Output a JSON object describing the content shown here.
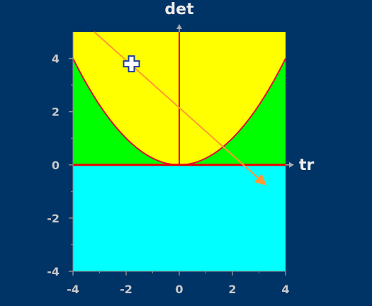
{
  "axes": {
    "x_label": "tr",
    "y_label": "det",
    "xlim": [
      -4,
      4
    ],
    "ylim": [
      -4,
      5
    ],
    "x_ticks": [
      "-4",
      "-2",
      "0",
      "2",
      "4"
    ],
    "x_tick_values": [
      -4,
      -2,
      0,
      2,
      4
    ],
    "y_ticks": [
      "4",
      "2",
      "0",
      "-2",
      "-4"
    ],
    "y_tick_values": [
      4,
      2,
      0,
      -2,
      -4
    ],
    "y_minor_ticks": [
      3,
      1,
      -1,
      -3
    ]
  },
  "regions": {
    "negative_det_color": "#00ffff",
    "outside_parabola_color": "#00ff00",
    "inside_parabola_color": "#ffff00"
  },
  "curves": {
    "parabola": {
      "equation": "det = tr^2/4",
      "color": "#dd1133"
    },
    "det_axis_line_color": "#ee0000",
    "tr_axis_line_color": "#ee0000"
  },
  "trajectory": {
    "start": [
      -3.2,
      5.0
    ],
    "end": [
      3.2,
      -0.7
    ],
    "color": "#ff9933"
  },
  "cursor": {
    "icon": "crosshair-cursor-icon",
    "position": [
      -1.8,
      3.8
    ],
    "color": "#1a3fa0"
  },
  "colors": {
    "background": "#003366",
    "axis_arrow": "#a9a9a9",
    "tick_label": "#c9c9c9"
  }
}
